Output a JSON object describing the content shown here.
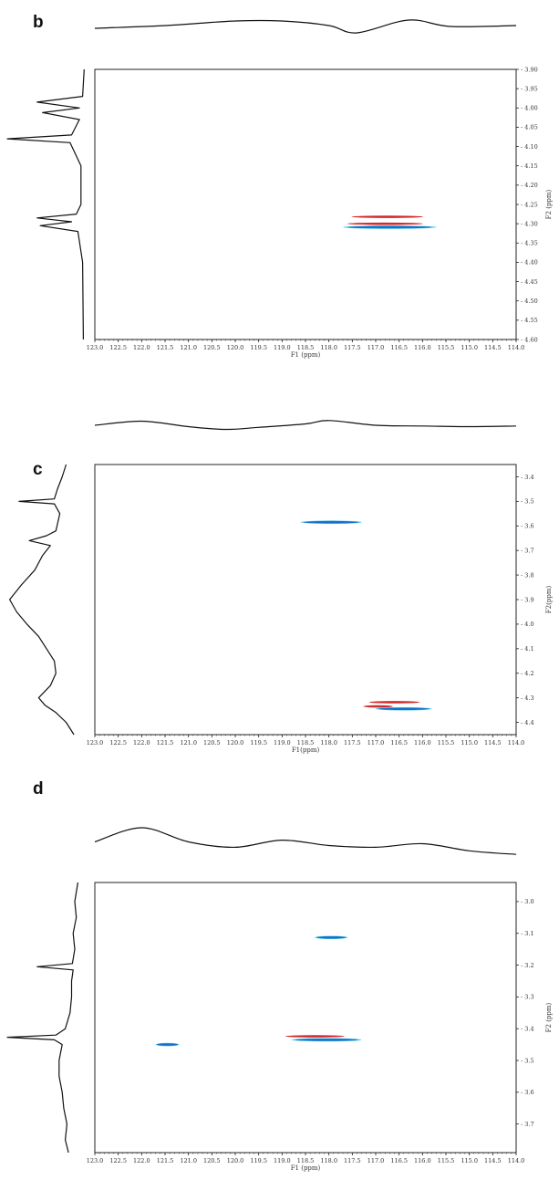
{
  "colors": {
    "frame": "#222222",
    "trace": "#111111",
    "positive_peak": "#d42a2a",
    "negative_peak": "#1a6fc9",
    "cyan_edge": "#2ec4e6"
  },
  "chart_data": [
    {
      "type": "heatmap",
      "panel": "b",
      "xlabel": "F1 (ppm)",
      "ylabel": "F2 (ppm)",
      "xlim": [
        123.0,
        114.0
      ],
      "ylim": [
        3.9,
        4.6
      ],
      "x_ticks": [
        "123.0",
        "122.5",
        "122.0",
        "121.5",
        "121.0",
        "120.5",
        "120.0",
        "119.5",
        "119.0",
        "118.5",
        "118.0",
        "117.5",
        "117.0",
        "116.5",
        "116.0",
        "115.5",
        "115.0",
        "114.5",
        "114.0"
      ],
      "y_ticks": [
        "3.90",
        "3.95",
        "4.00",
        "4.05",
        "4.10",
        "4.15",
        "4.20",
        "4.25",
        "4.30",
        "4.35",
        "4.40",
        "4.45",
        "4.50",
        "4.55",
        "4.60"
      ],
      "cross_peaks": [
        {
          "x_from": 117.6,
          "x_to": 115.9,
          "y": 4.282,
          "sign": "positive"
        },
        {
          "x_from": 117.7,
          "x_to": 115.9,
          "y": 4.3,
          "sign": "positive"
        },
        {
          "x_from": 117.7,
          "x_to": 115.7,
          "y": 4.309,
          "sign": "negative"
        }
      ],
      "proj_f1": [
        [
          123.0,
          0.45
        ],
        [
          121.5,
          0.6
        ],
        [
          120.0,
          0.85
        ],
        [
          119.0,
          0.85
        ],
        [
          118.0,
          0.6
        ],
        [
          117.4,
          0.2
        ],
        [
          116.3,
          0.9
        ],
        [
          115.4,
          0.55
        ],
        [
          114.0,
          0.6
        ]
      ],
      "proj_f2": [
        [
          3.9,
          0.02
        ],
        [
          3.97,
          0.04
        ],
        [
          3.985,
          0.62
        ],
        [
          4.0,
          0.08
        ],
        [
          4.012,
          0.55
        ],
        [
          4.03,
          0.08
        ],
        [
          4.07,
          0.18
        ],
        [
          4.08,
          1.0
        ],
        [
          4.09,
          0.2
        ],
        [
          4.15,
          0.06
        ],
        [
          4.25,
          0.06
        ],
        [
          4.275,
          0.12
        ],
        [
          4.285,
          0.62
        ],
        [
          4.295,
          0.18
        ],
        [
          4.305,
          0.58
        ],
        [
          4.32,
          0.1
        ],
        [
          4.4,
          0.04
        ],
        [
          4.6,
          0.03
        ]
      ]
    },
    {
      "type": "heatmap",
      "panel": "c",
      "xlabel": "F1(ppm)",
      "ylabel": "F2(ppm)",
      "xlim": [
        123.0,
        114.0
      ],
      "ylim": [
        3.35,
        4.45
      ],
      "x_ticks": [
        "123.0",
        "122.5",
        "122.0",
        "121.5",
        "121.0",
        "120.5",
        "120.0",
        "119.5",
        "119.0",
        "118.5",
        "118.0",
        "117.5",
        "117.0",
        "116.5",
        "116.0",
        "115.5",
        "115.0",
        "114.5",
        "114.0"
      ],
      "y_ticks": [
        "3.4",
        "3.5",
        "3.6",
        "3.7",
        "3.8",
        "3.9",
        "4.0",
        "4.1",
        "4.2",
        "4.3",
        "4.4"
      ],
      "cross_peaks": [
        {
          "x_from": 118.6,
          "x_to": 117.3,
          "y": 3.585,
          "sign": "negative"
        },
        {
          "x_from": 117.2,
          "x_to": 116.0,
          "y": 4.318,
          "sign": "positive"
        },
        {
          "x_from": 117.3,
          "x_to": 116.6,
          "y": 4.335,
          "sign": "positive"
        },
        {
          "x_from": 117.0,
          "x_to": 115.8,
          "y": 4.345,
          "sign": "negative"
        }
      ],
      "proj_f1": [
        [
          123.0,
          0.6
        ],
        [
          122.0,
          0.9
        ],
        [
          121.0,
          0.5
        ],
        [
          120.2,
          0.3
        ],
        [
          119.5,
          0.45
        ],
        [
          118.5,
          0.7
        ],
        [
          118.0,
          0.95
        ],
        [
          117.0,
          0.6
        ],
        [
          116.0,
          0.55
        ],
        [
          115.0,
          0.5
        ],
        [
          114.0,
          0.55
        ]
      ],
      "proj_f2": [
        [
          3.35,
          0.25
        ],
        [
          3.4,
          0.3
        ],
        [
          3.45,
          0.36
        ],
        [
          3.49,
          0.4
        ],
        [
          3.5,
          0.85
        ],
        [
          3.51,
          0.4
        ],
        [
          3.55,
          0.33
        ],
        [
          3.62,
          0.38
        ],
        [
          3.64,
          0.5
        ],
        [
          3.66,
          0.72
        ],
        [
          3.68,
          0.45
        ],
        [
          3.72,
          0.55
        ],
        [
          3.78,
          0.65
        ],
        [
          3.84,
          0.82
        ],
        [
          3.9,
          0.97
        ],
        [
          3.95,
          0.88
        ],
        [
          4.0,
          0.75
        ],
        [
          4.05,
          0.6
        ],
        [
          4.1,
          0.5
        ],
        [
          4.15,
          0.4
        ],
        [
          4.2,
          0.38
        ],
        [
          4.25,
          0.45
        ],
        [
          4.3,
          0.6
        ],
        [
          4.33,
          0.52
        ],
        [
          4.36,
          0.38
        ],
        [
          4.4,
          0.25
        ],
        [
          4.45,
          0.15
        ]
      ]
    },
    {
      "type": "heatmap",
      "panel": "d",
      "xlabel": "F1 (ppm)",
      "ylabel": "F2 (ppm)",
      "xlim": [
        123.0,
        114.0
      ],
      "ylim": [
        2.94,
        3.79
      ],
      "x_ticks": [
        "123.0",
        "122.5",
        "122.0",
        "121.5",
        "121.0",
        "120.5",
        "120.0",
        "119.5",
        "119.0",
        "118.5",
        "118.0",
        "117.5",
        "117.0",
        "116.5",
        "116.0",
        "115.5",
        "115.0",
        "114.5",
        "114.0"
      ],
      "y_ticks": [
        "3.0",
        "3.1",
        "3.2",
        "3.3",
        "3.4",
        "3.5",
        "3.6",
        "3.7"
      ],
      "cross_peaks": [
        {
          "x_from": 118.3,
          "x_to": 117.6,
          "y": 3.113,
          "sign": "negative"
        },
        {
          "x_from": 121.7,
          "x_to": 121.2,
          "y": 3.45,
          "sign": "negative"
        },
        {
          "x_from": 119.0,
          "x_to": 117.6,
          "y": 3.424,
          "sign": "positive"
        },
        {
          "x_from": 118.8,
          "x_to": 117.3,
          "y": 3.435,
          "sign": "negative"
        }
      ],
      "proj_f1": [
        [
          123.0,
          0.55
        ],
        [
          122.0,
          0.95
        ],
        [
          121.0,
          0.55
        ],
        [
          120.0,
          0.4
        ],
        [
          119.0,
          0.6
        ],
        [
          118.0,
          0.45
        ],
        [
          117.0,
          0.4
        ],
        [
          116.0,
          0.5
        ],
        [
          115.0,
          0.3
        ],
        [
          114.0,
          0.2
        ]
      ],
      "proj_f2": [
        [
          2.94,
          0.1
        ],
        [
          3.0,
          0.14
        ],
        [
          3.05,
          0.12
        ],
        [
          3.1,
          0.16
        ],
        [
          3.15,
          0.14
        ],
        [
          3.195,
          0.17
        ],
        [
          3.205,
          0.62
        ],
        [
          3.215,
          0.16
        ],
        [
          3.25,
          0.18
        ],
        [
          3.3,
          0.18
        ],
        [
          3.35,
          0.2
        ],
        [
          3.4,
          0.26
        ],
        [
          3.42,
          0.38
        ],
        [
          3.427,
          1.0
        ],
        [
          3.435,
          0.4
        ],
        [
          3.45,
          0.3
        ],
        [
          3.5,
          0.34
        ],
        [
          3.55,
          0.34
        ],
        [
          3.6,
          0.3
        ],
        [
          3.65,
          0.28
        ],
        [
          3.7,
          0.24
        ],
        [
          3.75,
          0.26
        ],
        [
          3.79,
          0.22
        ]
      ]
    }
  ]
}
